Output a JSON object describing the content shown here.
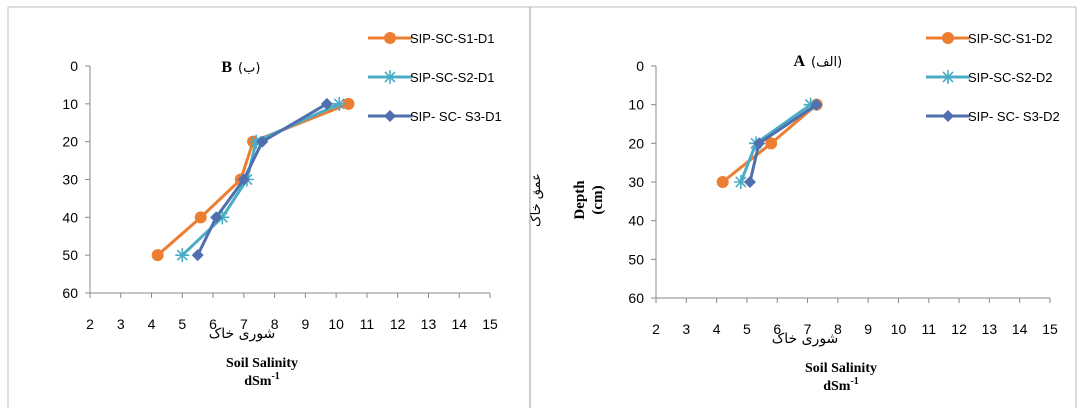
{
  "chart_data": [
    {
      "type": "line",
      "title": "B",
      "title_fa": "(ب)",
      "xlabel_fa": "شوری خاک",
      "xlabel": "Soil Salinity",
      "xunit": "dSm",
      "xunit_sup": "-1",
      "ylabel": "",
      "ylabel_fa": "",
      "xlim": [
        2,
        15
      ],
      "ylim": [
        0,
        60
      ],
      "y_reversed": true,
      "x_ticks": [
        "2",
        "3",
        "4",
        "5",
        "6",
        "7",
        "8",
        "9",
        "10",
        "11",
        "12",
        "13",
        "14",
        "15"
      ],
      "y_ticks": [
        "0",
        "10",
        "20",
        "30",
        "40",
        "50",
        "60"
      ],
      "legend_position": "top-right",
      "series": [
        {
          "name": "SIP-SC-S1-D1",
          "color": "#ED7D31",
          "marker": "circle",
          "points": [
            {
              "x": 10.4,
              "y": 10
            },
            {
              "x": 7.3,
              "y": 20
            },
            {
              "x": 6.9,
              "y": 30
            },
            {
              "x": 5.6,
              "y": 40
            },
            {
              "x": 4.2,
              "y": 50
            }
          ]
        },
        {
          "name": "SIP-SC-S2-D1",
          "color": "#4BACC6",
          "marker": "star",
          "points": [
            {
              "x": 10.1,
              "y": 10
            },
            {
              "x": 7.4,
              "y": 20
            },
            {
              "x": 7.1,
              "y": 30
            },
            {
              "x": 6.3,
              "y": 40
            },
            {
              "x": 5.0,
              "y": 50
            }
          ]
        },
        {
          "name": "SIP- SC- S3-D1",
          "color": "#4F6FAE",
          "marker": "diamond",
          "points": [
            {
              "x": 9.7,
              "y": 10
            },
            {
              "x": 7.6,
              "y": 20
            },
            {
              "x": 7.0,
              "y": 30
            },
            {
              "x": 6.1,
              "y": 40
            },
            {
              "x": 5.5,
              "y": 50
            }
          ]
        }
      ]
    },
    {
      "type": "line",
      "title": "A",
      "title_fa": "(الف)",
      "xlabel_fa": "شوری خاک",
      "xlabel": "Soil Salinity",
      "xunit": "dSm",
      "xunit_sup": "-1",
      "ylabel": "Depth",
      "ylabel_unit": "(cm)",
      "ylabel_fa": "عمق خاک",
      "xlim": [
        2,
        15
      ],
      "ylim": [
        0,
        60
      ],
      "y_reversed": true,
      "x_ticks": [
        "2",
        "3",
        "4",
        "5",
        "6",
        "7",
        "8",
        "9",
        "10",
        "11",
        "12",
        "13",
        "14",
        "15"
      ],
      "y_ticks": [
        "0",
        "10",
        "20",
        "30",
        "40",
        "50",
        "60"
      ],
      "legend_position": "top-right",
      "series": [
        {
          "name": "SIP-SC-S1-D2",
          "color": "#ED7D31",
          "marker": "circle",
          "points": [
            {
              "x": 7.3,
              "y": 10
            },
            {
              "x": 5.8,
              "y": 20
            },
            {
              "x": 4.2,
              "y": 30
            }
          ]
        },
        {
          "name": "SIP-SC-S2-D2",
          "color": "#4BACC6",
          "marker": "star",
          "points": [
            {
              "x": 7.1,
              "y": 10
            },
            {
              "x": 5.3,
              "y": 20
            },
            {
              "x": 4.8,
              "y": 30
            }
          ]
        },
        {
          "name": "SIP- SC- S3-D2",
          "color": "#4F6FAE",
          "marker": "diamond",
          "points": [
            {
              "x": 7.3,
              "y": 10
            },
            {
              "x": 5.4,
              "y": 20
            },
            {
              "x": 5.1,
              "y": 30
            }
          ]
        }
      ]
    }
  ]
}
